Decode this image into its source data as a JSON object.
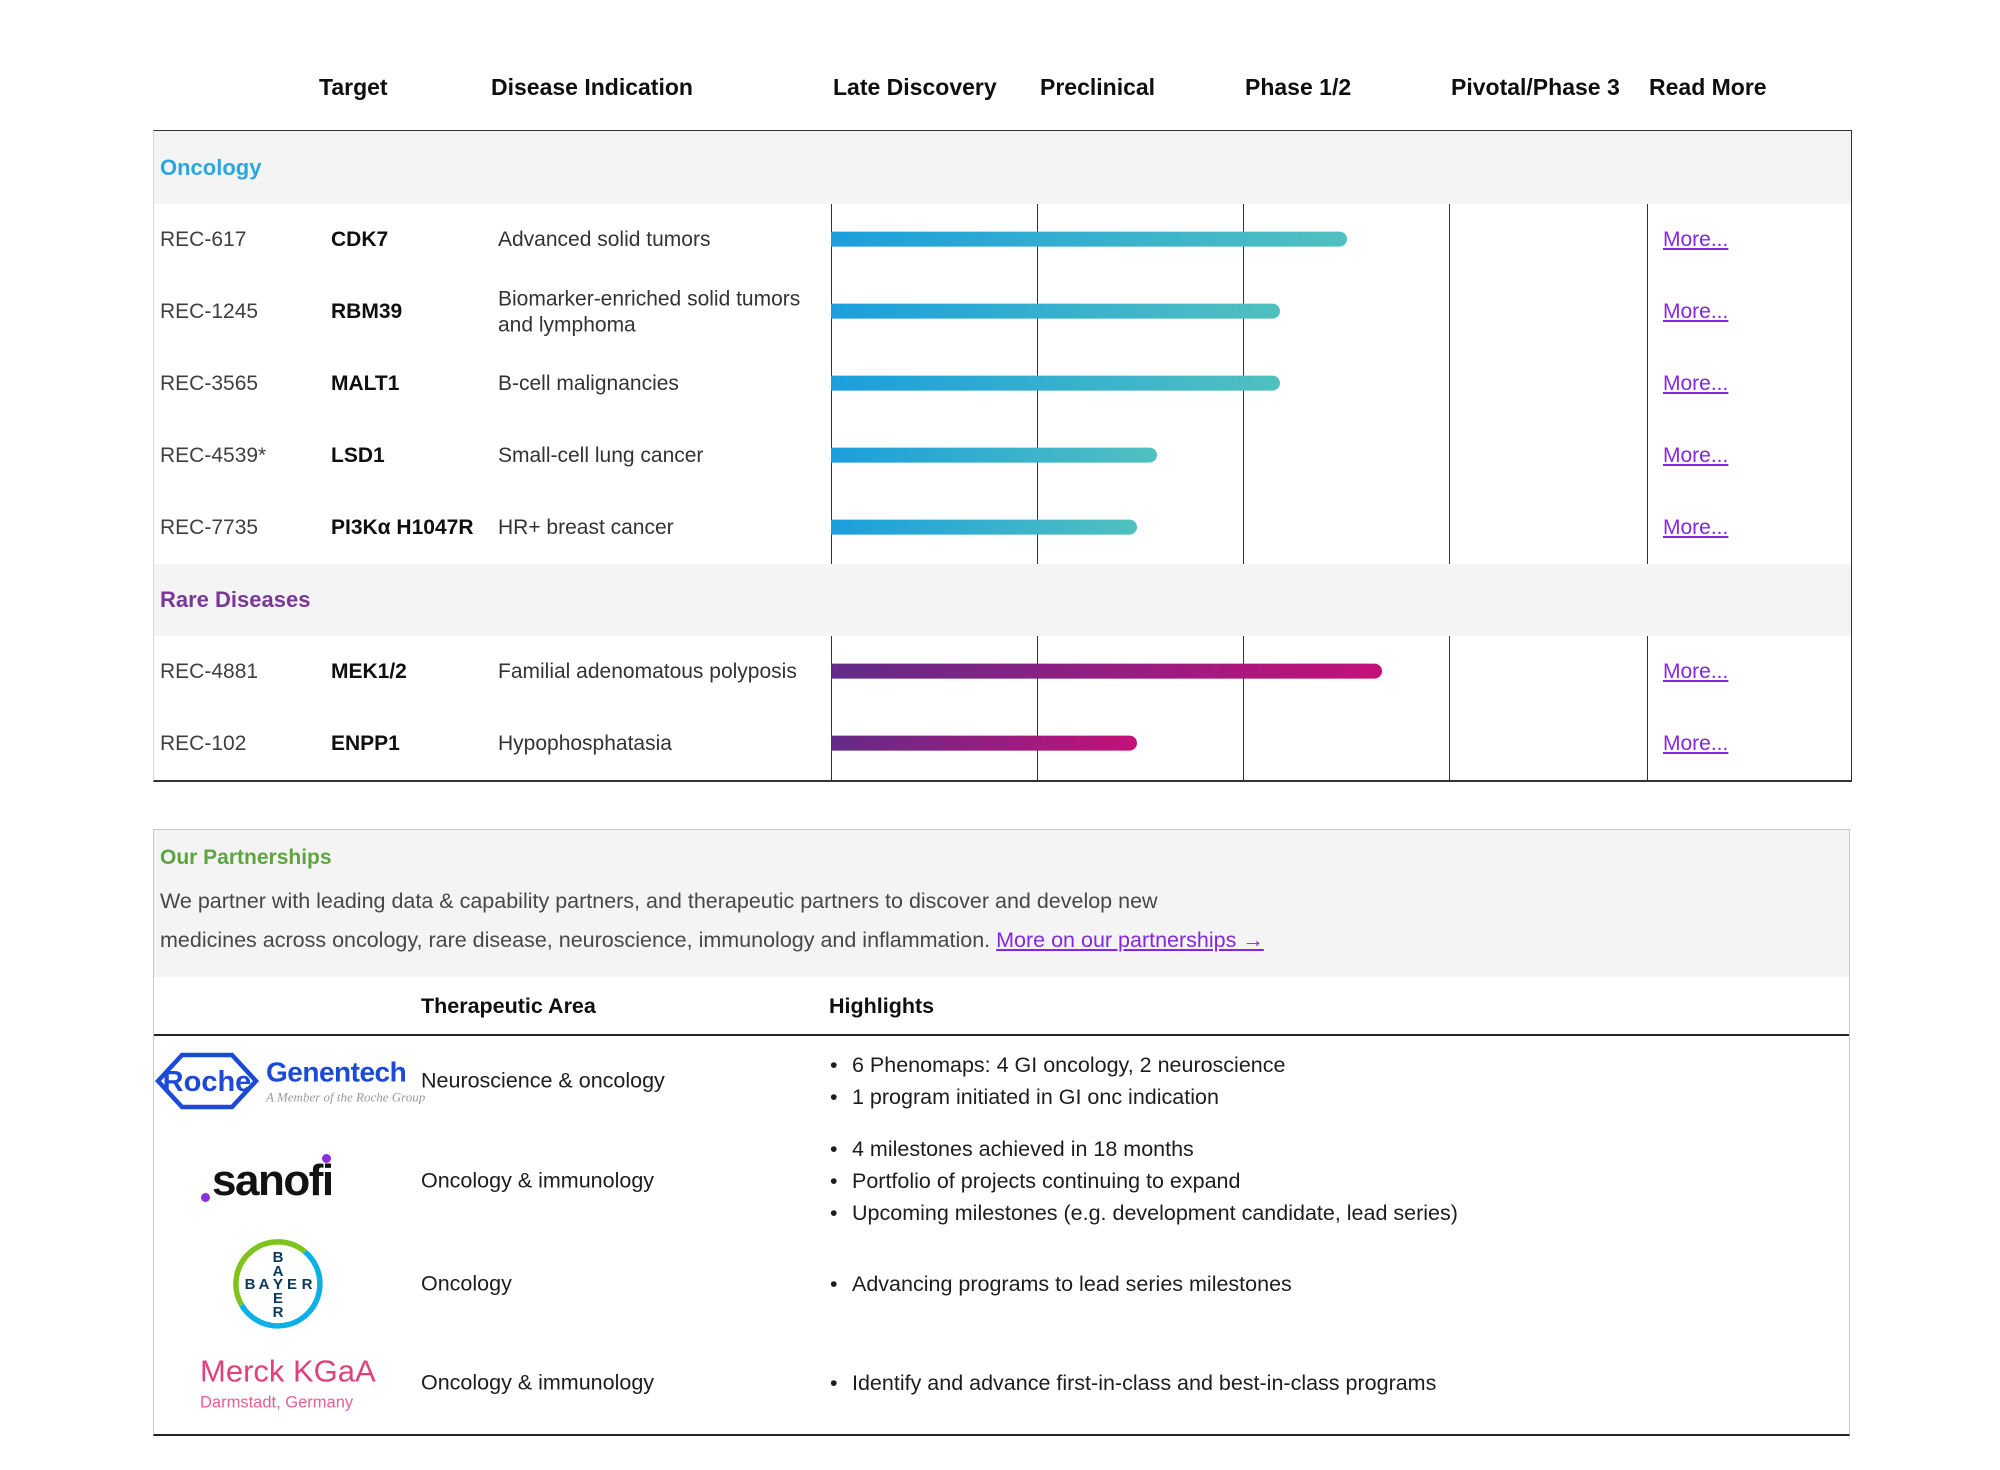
{
  "pipeline": {
    "column_headers": [
      "Target",
      "Disease Indication",
      "Late Discovery",
      "Preclinical",
      "Phase 1/2",
      "Pivotal/Phase 3",
      "Read More"
    ],
    "sections": [
      {
        "label": "Oncology",
        "color": "#2ba7e0"
      },
      {
        "label": "Rare Diseases",
        "color": "#7b3796"
      }
    ],
    "read_more_label": "More..."
  },
  "chart_data": {
    "type": "bar",
    "orientation": "horizontal",
    "phases": [
      "Late Discovery",
      "Preclinical",
      "Phase 1/2",
      "Pivotal/Phase 3"
    ],
    "note": "progress_phase_units: 1 unit = one full phase column",
    "series": [
      {
        "group": "Oncology",
        "program": "REC-617",
        "target": "CDK7",
        "indication": "Advanced solid tumors",
        "progress_phase_units": 2.53
      },
      {
        "group": "Oncology",
        "program": "REC-1245",
        "target": "RBM39",
        "indication": "Biomarker-enriched solid tumors and lymphoma",
        "progress_phase_units": 2.2
      },
      {
        "group": "Oncology",
        "program": "REC-3565",
        "target": "MALT1",
        "indication": "B-cell malignancies",
        "progress_phase_units": 2.2
      },
      {
        "group": "Oncology",
        "program": "REC-4539*",
        "target": "LSD1",
        "indication": "Small-cell lung cancer",
        "progress_phase_units": 1.6
      },
      {
        "group": "Oncology",
        "program": "REC-7735",
        "target": "PI3Kα H1047R",
        "indication": "HR+ breast cancer",
        "progress_phase_units": 1.5
      },
      {
        "group": "Rare Diseases",
        "program": "REC-4881",
        "target": "MEK1/2",
        "indication": "Familial adenomatous polyposis",
        "progress_phase_units": 2.7
      },
      {
        "group": "Rare Diseases",
        "program": "REC-102",
        "target": "ENPP1",
        "indication": "Hypophosphatasia",
        "progress_phase_units": 1.5
      }
    ],
    "bar_colors": {
      "oncology_gradient": [
        "#1b9fdc",
        "#50c0c0"
      ],
      "rare_gradient": [
        "#632b88",
        "#c31179"
      ]
    }
  },
  "partnerships": {
    "title": "Our Partnerships",
    "title_color": "#5ca53f",
    "description_line1": "We partner with leading data & capability partners, and therapeutic partners to discover and develop new",
    "description_line2": "medicines across oncology, rare disease, neuroscience, immunology and inflammation.",
    "link_label": "More on our partnerships →",
    "link_color": "#8527e2",
    "table_headers": {
      "area": "Therapeutic Area",
      "highlights": "Highlights"
    },
    "partners": [
      {
        "name": "Roche Genentech",
        "area": "Neuroscience & oncology",
        "highlights": [
          "6 Phenomaps: 4 GI oncology, 2 neuroscience",
          "1 program initiated in GI onc indication"
        ]
      },
      {
        "name": "Sanofi",
        "area": "Oncology & immunology",
        "highlights": [
          "4 milestones achieved in 18 months",
          "Portfolio of projects continuing to expand",
          "Upcoming milestones (e.g. development candidate, lead series)"
        ]
      },
      {
        "name": "Bayer",
        "area": "Oncology",
        "highlights": [
          "Advancing programs to lead series milestones"
        ]
      },
      {
        "name": "Merck KGaA",
        "area": "Oncology & immunology",
        "highlights": [
          "Identify and advance first-in-class and best-in-class programs"
        ]
      }
    ],
    "logos": {
      "roche": {
        "label": "Roche"
      },
      "genentech": {
        "label": "Genentech",
        "tagline": "A Member of the Roche Group"
      },
      "sanofi": {
        "label": "sanofi"
      },
      "bayer": {
        "label": "BAYER"
      },
      "merck": {
        "label": "Merck KGaA",
        "tagline": "Darmstadt, Germany"
      }
    }
  }
}
